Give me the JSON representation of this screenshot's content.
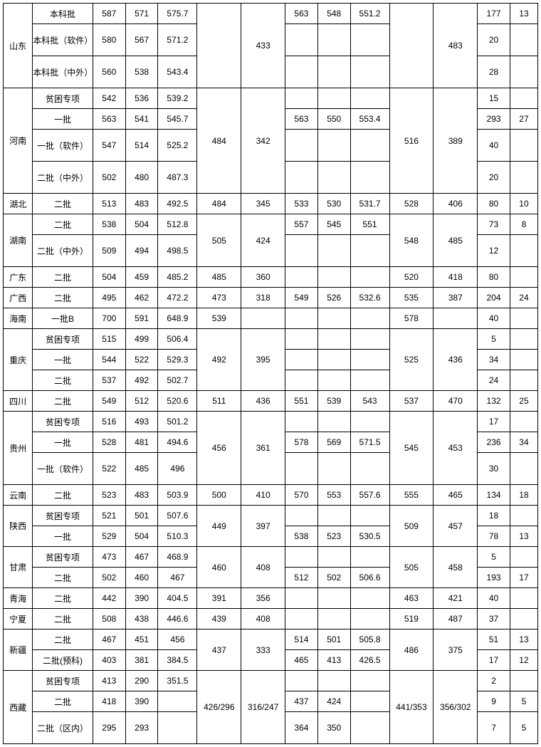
{
  "columns": [
    {
      "key": "province"
    },
    {
      "key": "batch"
    },
    {
      "key": "c3"
    },
    {
      "key": "c4"
    },
    {
      "key": "c5"
    },
    {
      "key": "c6"
    },
    {
      "key": "c7"
    },
    {
      "key": "c8"
    },
    {
      "key": "c9"
    },
    {
      "key": "c10"
    },
    {
      "key": "c11"
    },
    {
      "key": "c12"
    },
    {
      "key": "c13"
    },
    {
      "key": "c14"
    }
  ],
  "t": {
    "shandong": {
      "name": "山东",
      "r1": {
        "batch": "本科批",
        "c3": "587",
        "c4": "571",
        "c5": "575.7",
        "c8": "563",
        "c9": "548",
        "c10": "551.2",
        "c13": "177",
        "c14": "13"
      },
      "r2": {
        "batch": "本科批（软件）",
        "c3": "580",
        "c4": "567",
        "c5": "571.2",
        "c13": "20"
      },
      "r3": {
        "batch": "本科批（中外）",
        "c3": "560",
        "c4": "538",
        "c5": "543.4",
        "c13": "28"
      },
      "c7": "433",
      "c12": "483"
    },
    "henan": {
      "name": "河南",
      "r1": {
        "batch": "贫困专项",
        "c3": "542",
        "c4": "536",
        "c5": "539.2",
        "c13": "15"
      },
      "r2": {
        "batch": "一批",
        "c3": "563",
        "c4": "541",
        "c5": "545.7",
        "c8": "563",
        "c9": "550",
        "c10": "553.4",
        "c13": "293",
        "c14": "27"
      },
      "r3": {
        "batch": "一批（软件）",
        "c3": "547",
        "c4": "514",
        "c5": "525.2",
        "c13": "40"
      },
      "r4": {
        "batch": "二批（中外）",
        "c3": "502",
        "c4": "480",
        "c5": "487.3",
        "c13": "20"
      },
      "c6": "484",
      "c7": "342",
      "c11": "516",
      "c12": "389"
    },
    "hubei": {
      "name": "湖北",
      "r1": {
        "batch": "二批",
        "c3": "513",
        "c4": "483",
        "c5": "492.5",
        "c6": "484",
        "c7": "345",
        "c8": "533",
        "c9": "530",
        "c10": "531.7",
        "c11": "528",
        "c12": "406",
        "c13": "80",
        "c14": "10"
      }
    },
    "hunan": {
      "name": "湖南",
      "r1": {
        "batch": "二批",
        "c3": "538",
        "c4": "504",
        "c5": "512.8",
        "c8": "557",
        "c9": "545",
        "c10": "551",
        "c13": "73",
        "c14": "8"
      },
      "r2": {
        "batch": "二批（中外）",
        "c3": "509",
        "c4": "494",
        "c5": "498.5",
        "c13": "12"
      },
      "c6": "505",
      "c7": "424",
      "c11": "548",
      "c12": "485"
    },
    "guangdong": {
      "name": "广东",
      "r1": {
        "batch": "二批",
        "c3": "504",
        "c4": "459",
        "c5": "485.2",
        "c6": "485",
        "c7": "360",
        "c11": "520",
        "c12": "418",
        "c13": "80"
      }
    },
    "guangxi": {
      "name": "广西",
      "r1": {
        "batch": "二批",
        "c3": "495",
        "c4": "462",
        "c5": "472.2",
        "c6": "473",
        "c7": "318",
        "c8": "549",
        "c9": "526",
        "c10": "532.6",
        "c11": "535",
        "c12": "387",
        "c13": "204",
        "c14": "24"
      }
    },
    "hainan": {
      "name": "海南",
      "r1": {
        "batch": "一批B",
        "c3": "700",
        "c4": "591",
        "c5": "648.9",
        "c6": "539",
        "c11": "578",
        "c13": "40"
      }
    },
    "chongqing": {
      "name": "重庆",
      "r1": {
        "batch": "贫困专项",
        "c3": "515",
        "c4": "499",
        "c5": "506.4",
        "c13": "5"
      },
      "r2": {
        "batch": "一批",
        "c3": "544",
        "c4": "522",
        "c5": "529.3",
        "c13": "34"
      },
      "r3": {
        "batch": "二批",
        "c3": "537",
        "c4": "492",
        "c5": "502.7",
        "c13": "24"
      },
      "c6": "492",
      "c7": "395",
      "c11": "525",
      "c12": "436"
    },
    "sichuan": {
      "name": "四川",
      "r1": {
        "batch": "二批",
        "c3": "549",
        "c4": "512",
        "c5": "520.6",
        "c6": "511",
        "c7": "436",
        "c8": "551",
        "c9": "539",
        "c10": "543",
        "c11": "537",
        "c12": "470",
        "c13": "132",
        "c14": "25"
      }
    },
    "guizhou": {
      "name": "贵州",
      "r1": {
        "batch": "贫困专项",
        "c3": "516",
        "c4": "493",
        "c5": "501.2",
        "c13": "17"
      },
      "r2": {
        "batch": "一批",
        "c3": "528",
        "c4": "481",
        "c5": "494.6",
        "c8": "578",
        "c9": "569",
        "c10": "571.5",
        "c13": "236",
        "c14": "34"
      },
      "r3": {
        "batch": "一批（软件）",
        "c3": "522",
        "c4": "485",
        "c5": "496",
        "c13": "30"
      },
      "c6": "456",
      "c7": "361",
      "c11": "545",
      "c12": "453"
    },
    "yunnan": {
      "name": "云南",
      "r1": {
        "batch": "二批",
        "c3": "523",
        "c4": "483",
        "c5": "503.9",
        "c6": "500",
        "c7": "410",
        "c8": "570",
        "c9": "553",
        "c10": "557.6",
        "c11": "555",
        "c12": "465",
        "c13": "134",
        "c14": "18"
      }
    },
    "shaanxi": {
      "name": "陕西",
      "r1": {
        "batch": "贫困专项",
        "c3": "521",
        "c4": "501",
        "c5": "507.6",
        "c13": "18"
      },
      "r2": {
        "batch": "一批",
        "c3": "529",
        "c4": "504",
        "c5": "510.3",
        "c8": "538",
        "c9": "523",
        "c10": "530.5",
        "c13": "78",
        "c14": "13"
      },
      "c6": "449",
      "c7": "397",
      "c11": "509",
      "c12": "457"
    },
    "gansu": {
      "name": "甘肃",
      "r1": {
        "batch": "贫困专项",
        "c3": "473",
        "c4": "467",
        "c5": "468.9",
        "c13": "5"
      },
      "r2": {
        "batch": "二批",
        "c3": "502",
        "c4": "460",
        "c5": "467",
        "c8": "512",
        "c9": "502",
        "c10": "506.6",
        "c13": "193",
        "c14": "17"
      },
      "c6": "460",
      "c7": "408",
      "c11": "505",
      "c12": "458"
    },
    "qinghai": {
      "name": "青海",
      "r1": {
        "batch": "二批",
        "c3": "442",
        "c4": "390",
        "c5": "404.5",
        "c6": "391",
        "c7": "356",
        "c11": "463",
        "c12": "421",
        "c13": "40"
      }
    },
    "ningxia": {
      "name": "宁夏",
      "r1": {
        "batch": "二批",
        "c3": "508",
        "c4": "438",
        "c5": "446.6",
        "c6": "439",
        "c7": "408",
        "c11": "519",
        "c12": "487",
        "c13": "37"
      }
    },
    "xinjiang": {
      "name": "新疆",
      "r1": {
        "batch": "二批",
        "c3": "467",
        "c4": "451",
        "c5": "456",
        "c8": "514",
        "c9": "501",
        "c10": "505.8",
        "c13": "51",
        "c14": "13"
      },
      "r2": {
        "batch": "二批(预科)",
        "c3": "403",
        "c4": "381",
        "c5": "384.5",
        "c8": "465",
        "c9": "413",
        "c10": "426.5",
        "c13": "17",
        "c14": "12"
      },
      "c6": "437",
      "c7": "333",
      "c11": "486",
      "c12": "375"
    },
    "xizang": {
      "name": "西藏",
      "r1": {
        "batch": "贫困专项",
        "c3": "413",
        "c4": "290",
        "c5": "351.5",
        "c13": "2"
      },
      "r2": {
        "batch": "二批",
        "c3": "418",
        "c4": "390",
        "c8": "437",
        "c9": "424",
        "c13": "9",
        "c14": "5"
      },
      "r3": {
        "batch": "二批（区内）",
        "c3": "295",
        "c4": "293",
        "c8": "364",
        "c9": "350",
        "c13": "7",
        "c14": "5"
      },
      "c6": "426/296",
      "c7": "316/247",
      "c11": "441/353",
      "c12": "356/302"
    }
  }
}
